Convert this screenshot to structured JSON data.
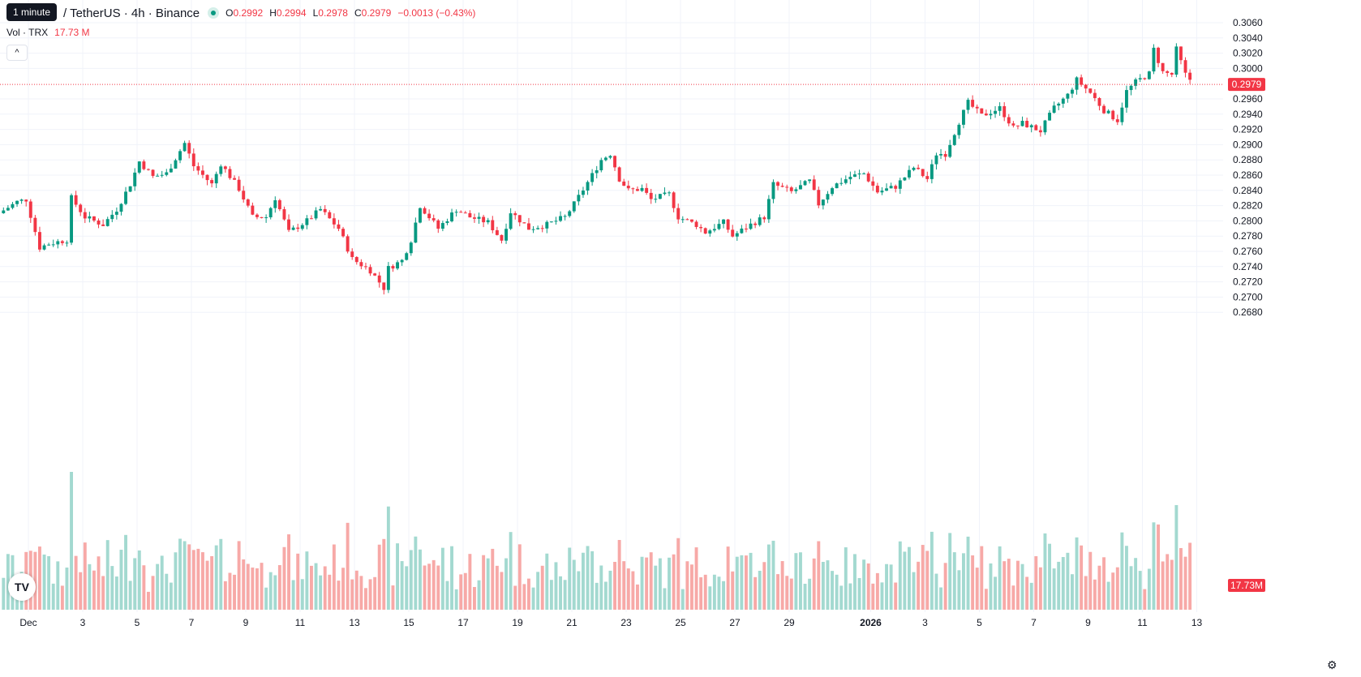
{
  "header": {
    "tooltip": "1 minute",
    "symbol": "/ TetherUS · 4h · Binance",
    "ohlc": [
      {
        "k": "O",
        "v": "0.2992"
      },
      {
        "k": "H",
        "v": "0.2994"
      },
      {
        "k": "L",
        "v": "0.2978"
      },
      {
        "k": "C",
        "v": "0.2979"
      },
      {
        "k": "",
        "v": "−0.0013 (−0.43%)"
      }
    ],
    "vol_label": "Vol · TRX",
    "vol_value": "17.73 M",
    "collapse_icon": "^"
  },
  "colors": {
    "up": "#089981",
    "down": "#f23645",
    "up_vol": "#a3d9d0",
    "down_vol": "#f7a9a7",
    "grid": "#f0f3fa",
    "axis_text": "#131722"
  },
  "chart_data": {
    "type": "candlestick",
    "ylim": [
      0.267,
      0.307
    ],
    "price_ticks": [
      "0.3060",
      "0.3040",
      "0.3020",
      "0.3000",
      "0.2960",
      "0.2940",
      "0.2920",
      "0.2900",
      "0.2880",
      "0.2860",
      "0.2840",
      "0.2820",
      "0.2800",
      "0.2780",
      "0.2760",
      "0.2740",
      "0.2720",
      "0.2700",
      "0.2680"
    ],
    "x_labels": [
      "Dec",
      "3",
      "5",
      "7",
      "9",
      "11",
      "13",
      "15",
      "17",
      "19",
      "21",
      "23",
      "25",
      "27",
      "29",
      "2026",
      "3",
      "5",
      "7",
      "9",
      "11",
      "13"
    ],
    "last_price": "0.2979",
    "last_volume": "17.73M",
    "anchors": [
      [
        "2025-11-30T00:00",
        0.281
      ],
      [
        "2025-11-30T16:00",
        0.2825
      ],
      [
        "2025-12-01T00:00",
        0.2828
      ],
      [
        "2025-12-01T12:00",
        0.2765
      ],
      [
        "2025-12-01T20:00",
        0.277
      ],
      [
        "2025-12-02T12:00",
        0.2775
      ],
      [
        "2025-12-02T16:00",
        0.283
      ],
      [
        "2025-12-03T04:00",
        0.2805
      ],
      [
        "2025-12-03T20:00",
        0.2795
      ],
      [
        "2025-12-04T08:00",
        0.2815
      ],
      [
        "2025-12-04T20:00",
        0.2848
      ],
      [
        "2025-12-05T04:00",
        0.2878
      ],
      [
        "2025-12-05T16:00",
        0.2858
      ],
      [
        "2025-12-06T04:00",
        0.2862
      ],
      [
        "2025-12-06T20:00",
        0.2902
      ],
      [
        "2025-12-07T04:00",
        0.2872
      ],
      [
        "2025-12-07T20:00",
        0.2848
      ],
      [
        "2025-12-08T04:00",
        0.2875
      ],
      [
        "2025-12-08T20:00",
        0.2842
      ],
      [
        "2025-12-09T08:00",
        0.2805
      ],
      [
        "2025-12-09T20:00",
        0.2805
      ],
      [
        "2025-12-10T04:00",
        0.283
      ],
      [
        "2025-12-10T16:00",
        0.2785
      ],
      [
        "2025-12-11T08:00",
        0.28
      ],
      [
        "2025-12-11T20:00",
        0.2815
      ],
      [
        "2025-12-12T12:00",
        0.279
      ],
      [
        "2025-12-13T00:00",
        0.275
      ],
      [
        "2025-12-13T16:00",
        0.2735
      ],
      [
        "2025-12-14T04:00",
        0.2712
      ],
      [
        "2025-12-14T08:00",
        0.2738
      ],
      [
        "2025-12-14T20:00",
        0.2748
      ],
      [
        "2025-12-15T04:00",
        0.2775
      ],
      [
        "2025-12-15T12:00",
        0.282
      ],
      [
        "2025-12-16T04:00",
        0.279
      ],
      [
        "2025-12-16T20:00",
        0.2815
      ],
      [
        "2025-12-17T08:00",
        0.2805
      ],
      [
        "2025-12-18T00:00",
        0.2798
      ],
      [
        "2025-12-18T12:00",
        0.2775
      ],
      [
        "2025-12-18T20:00",
        0.2812
      ],
      [
        "2025-12-19T12:00",
        0.279
      ],
      [
        "2025-12-20T04:00",
        0.2795
      ],
      [
        "2025-12-20T20:00",
        0.2805
      ],
      [
        "2025-12-21T04:00",
        0.2822
      ],
      [
        "2025-12-21T20:00",
        0.286
      ],
      [
        "2025-12-22T04:00",
        0.288
      ],
      [
        "2025-12-22T12:00",
        0.2888
      ],
      [
        "2025-12-22T20:00",
        0.2855
      ],
      [
        "2025-12-23T04:00",
        0.284
      ],
      [
        "2025-12-23T16:00",
        0.2842
      ],
      [
        "2025-12-24T00:00",
        0.2828
      ],
      [
        "2025-12-24T16:00",
        0.2835
      ],
      [
        "2025-12-25T00:00",
        0.2805
      ],
      [
        "2025-12-25T16:00",
        0.2795
      ],
      [
        "2025-12-26T00:00",
        0.2785
      ],
      [
        "2025-12-26T16:00",
        0.2798
      ],
      [
        "2025-12-27T00:00",
        0.278
      ],
      [
        "2025-12-27T16:00",
        0.2795
      ],
      [
        "2025-12-28T04:00",
        0.2805
      ],
      [
        "2025-12-28T12:00",
        0.2848
      ],
      [
        "2025-12-29T04:00",
        0.2838
      ],
      [
        "2025-12-29T20:00",
        0.2852
      ],
      [
        "2025-12-30T04:00",
        0.2822
      ],
      [
        "2025-12-30T16:00",
        0.2845
      ],
      [
        "2025-12-31T08:00",
        0.2858
      ],
      [
        "2025-12-31T20:00",
        0.2862
      ],
      [
        "2026-01-01T08:00",
        0.2838
      ],
      [
        "2026-01-02T00:00",
        0.2845
      ],
      [
        "2026-01-02T16:00",
        0.287
      ],
      [
        "2026-01-03T04:00",
        0.2855
      ],
      [
        "2026-01-03T12:00",
        0.2888
      ],
      [
        "2026-01-03T20:00",
        0.2888
      ],
      [
        "2026-01-04T08:00",
        0.293
      ],
      [
        "2026-01-04T16:00",
        0.2955
      ],
      [
        "2026-01-05T04:00",
        0.2938
      ],
      [
        "2026-01-05T20:00",
        0.2948
      ],
      [
        "2026-01-06T08:00",
        0.2922
      ],
      [
        "2026-01-06T16:00",
        0.2928
      ],
      [
        "2026-01-07T08:00",
        0.2918
      ],
      [
        "2026-01-07T20:00",
        0.2948
      ],
      [
        "2026-01-08T08:00",
        0.2965
      ],
      [
        "2026-01-08T16:00",
        0.2985
      ],
      [
        "2026-01-09T04:00",
        0.2968
      ],
      [
        "2026-01-09T16:00",
        0.2945
      ],
      [
        "2026-01-10T04:00",
        0.2932
      ],
      [
        "2026-01-10T12:00",
        0.297
      ],
      [
        "2026-01-10T20:00",
        0.2982
      ],
      [
        "2026-01-11T08:00",
        0.2993
      ],
      [
        "2026-01-11T12:00",
        0.3025
      ],
      [
        "2026-01-11T20:00",
        0.2995
      ],
      [
        "2026-01-12T04:00",
        0.2992
      ],
      [
        "2026-01-12T08:00",
        0.3025
      ],
      [
        "2026-01-12T16:00",
        0.2992
      ],
      [
        "2026-01-13T00:00",
        0.2979
      ]
    ]
  }
}
